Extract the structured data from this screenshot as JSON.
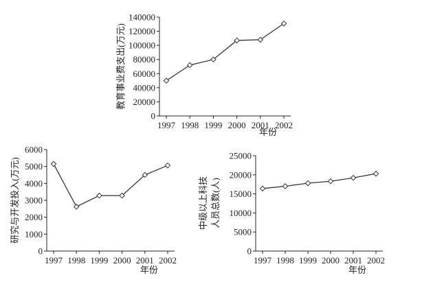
{
  "chart_data": [
    {
      "type": "line",
      "ylabel": "教育事业费支出(万元)",
      "xlabel": "年份",
      "x": [
        "1997",
        "1998",
        "1999",
        "2000",
        "2001",
        "2002"
      ],
      "values": [
        50000,
        72000,
        80000,
        107000,
        108000,
        131000
      ],
      "ylim": [
        0,
        140000
      ],
      "yticks": [
        "0",
        "20000",
        "40000",
        "60000",
        "80000",
        "100000",
        "120000",
        "140000"
      ],
      "marker": "diamond",
      "grid": false
    },
    {
      "type": "line",
      "ylabel": "研究与开发投入(万元)",
      "xlabel": "年份",
      "x": [
        "1997",
        "1998",
        "1999",
        "2000",
        "2001",
        "2002"
      ],
      "values": [
        5150,
        2620,
        3280,
        3280,
        4500,
        5060
      ],
      "ylim": [
        0,
        6000
      ],
      "yticks": [
        "0",
        "1000",
        "2000",
        "3000",
        "4000",
        "5000",
        "6000"
      ],
      "marker": "diamond",
      "grid": false
    },
    {
      "type": "line",
      "ylabel": "中级以上科技人员总数(人)",
      "ylabel_lines": [
        "中级以上科技",
        "人员总数(人)"
      ],
      "xlabel": "年份",
      "x": [
        "1997",
        "1998",
        "1999",
        "2000",
        "2001",
        "2002"
      ],
      "values": [
        16400,
        17000,
        17800,
        18300,
        19200,
        20300
      ],
      "ylim": [
        0,
        25000
      ],
      "yticks": [
        "0",
        "5000",
        "10000",
        "15000",
        "20000",
        "25000"
      ],
      "marker": "diamond",
      "grid": false
    }
  ],
  "colors": {
    "line": "#333333",
    "axis": "#222222",
    "marker_fill": "#ffffff"
  }
}
